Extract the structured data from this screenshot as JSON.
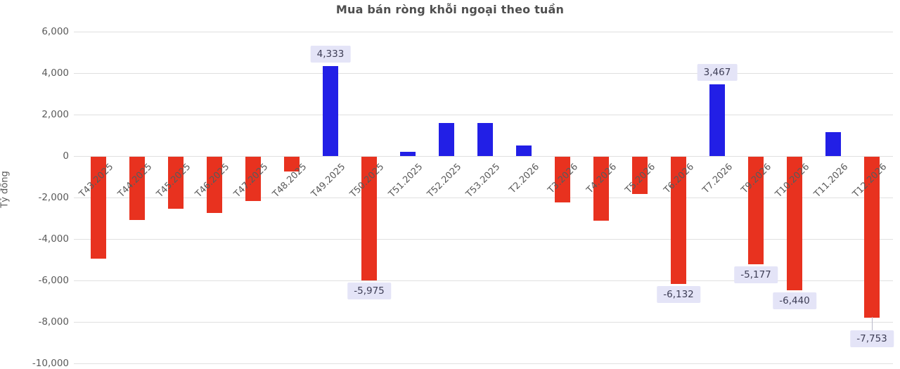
{
  "chart_data": {
    "type": "bar",
    "title": "Mua bán ròng khỗi ngoại theo tuần",
    "xlabel": "",
    "ylabel": "Tỷ đồng",
    "ylim": [
      -10000,
      6000
    ],
    "yticks": [
      6000,
      4000,
      2000,
      0,
      -2000,
      -4000,
      -6000,
      -8000,
      -10000
    ],
    "grid": true,
    "legend": "none",
    "categories": [
      "T43.2025",
      "T44.2025",
      "T45.2025",
      "T46.2025",
      "T47.2025",
      "T48.2025",
      "T49.2025",
      "T50.2025",
      "T51.2025",
      "T52.2025",
      "T53.2025",
      "T2.2026",
      "T3.2026",
      "T4.2026",
      "T5.2026",
      "T6.2026",
      "T7.2026",
      "T9.2026",
      "T10.2026",
      "T11.2026",
      "T12.2026"
    ],
    "values": [
      -4900,
      -3050,
      -2500,
      -2700,
      -2150,
      -720,
      4333,
      -5975,
      210,
      1580,
      1580,
      500,
      -2200,
      -3100,
      -1800,
      -6132,
      3467,
      -5177,
      -6440,
      1150,
      -7753
    ],
    "value_labels": [
      {
        "index": 6,
        "text": "4,333"
      },
      {
        "index": 7,
        "text": "-5,975"
      },
      {
        "index": 15,
        "text": "-6,132"
      },
      {
        "index": 16,
        "text": "3,467"
      },
      {
        "index": 17,
        "text": "-5,177"
      },
      {
        "index": 18,
        "text": "-6,440"
      },
      {
        "index": 20,
        "text": "-7,753",
        "leader": true
      }
    ],
    "colors": {
      "positive": "#221fe6",
      "negative": "#e8321f",
      "label_bg": "#e4e4f7",
      "label_text": "#3d3d55",
      "axis_text": "#5a5a5a",
      "grid": "#e0e0e0",
      "title": "#4f4f4f"
    }
  }
}
